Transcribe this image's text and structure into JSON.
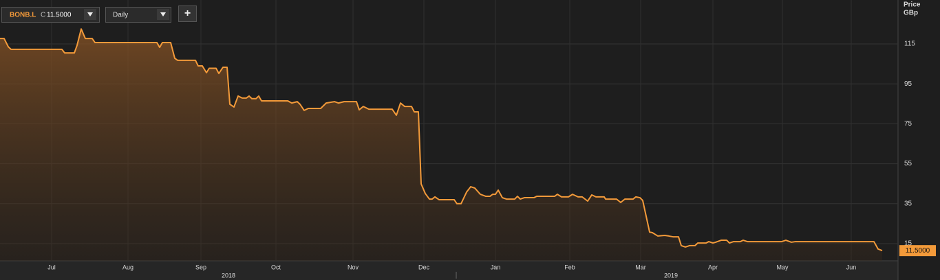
{
  "toolbar": {
    "symbol": "BONB.L",
    "close_marker": "C",
    "close_value": "11.5000",
    "interval": "Daily",
    "add_button": "+"
  },
  "chart_data": {
    "type": "line",
    "axis_title": "Price",
    "axis_unit": "GBp",
    "series": [
      {
        "color": "#f39a3a",
        "x": [
          0,
          1.2,
          2.4,
          3.2,
          18,
          18.8,
          21.6,
          22.4,
          23.6,
          24.8,
          26.8,
          27.6,
          45.6,
          46.4,
          47.2,
          49.6,
          50.8,
          51.6,
          56.8,
          57.6,
          58.8,
          60,
          60.8,
          62.8,
          63.6,
          64.8,
          66,
          66.8,
          68,
          69.2,
          70.4,
          71.6,
          72.4,
          73.2,
          74.4,
          75.2,
          76,
          83.6,
          84.8,
          86.4,
          87.2,
          88.4,
          89.6,
          93.2,
          94.8,
          97.2,
          98.4,
          100,
          103.6,
          104.4,
          105.6,
          107.2,
          114,
          115.2,
          116.4,
          117.6,
          119.6,
          120.4,
          121.6,
          122.4,
          123.6,
          124.8,
          125.6,
          126.4,
          127.6,
          132,
          132.8,
          134,
          135.6,
          136.8,
          138,
          139.6,
          141.2,
          142.4,
          143.2,
          144,
          144.8,
          146,
          147.2,
          149.6,
          150.4,
          151.2,
          152.4,
          155.2,
          156,
          161.2,
          162,
          163.2,
          165.2,
          166.4,
          168,
          169.2,
          170.8,
          172,
          173.2,
          175.6,
          176,
          179.2,
          180.4,
          181.6,
          184,
          184.8,
          186,
          186.8,
          188.8,
          189.6,
          191.2,
          193.2,
          194.4,
          195.6,
          197.2,
          198,
          199.2,
          200.4,
          202,
          202.8,
          205.2,
          206,
          207.2,
          208,
          209.6,
          211.2,
          212,
          213.2,
          215.2,
          216,
          217.2,
          227.2,
          228.4,
          230,
          231.2,
          254,
          255.2,
          256.4
        ],
        "values": [
          117.7,
          117.7,
          113.6,
          112.3,
          112.3,
          110.5,
          110.5,
          114.3,
          122.5,
          117.7,
          117.7,
          115.7,
          115.7,
          113.3,
          115.7,
          115.7,
          107.8,
          106.8,
          106.8,
          104,
          104,
          100.6,
          102.8,
          102.8,
          100.2,
          103.3,
          103.3,
          84.8,
          83.4,
          88.9,
          87.9,
          87.9,
          88.9,
          87.6,
          87.6,
          88.9,
          86.5,
          86.5,
          85.4,
          86.1,
          84.8,
          81.7,
          82.7,
          82.7,
          85.4,
          86.1,
          85.4,
          86.1,
          86.1,
          82,
          83.7,
          82.3,
          82.3,
          79.3,
          85.4,
          83.7,
          83.7,
          81,
          81,
          44.9,
          40.1,
          37.3,
          37.3,
          38.4,
          37,
          37,
          35,
          35,
          40.8,
          43.5,
          42.8,
          39.7,
          38.7,
          38.7,
          39.7,
          39.7,
          41.8,
          38,
          37.3,
          37.3,
          38.7,
          37.3,
          38,
          38,
          38.7,
          38.7,
          39.7,
          38.4,
          38.4,
          39.7,
          38.4,
          38.4,
          36.3,
          39.4,
          38.4,
          38.4,
          37.3,
          37.3,
          35.6,
          37.3,
          37.3,
          38.4,
          38,
          36.6,
          20.8,
          20.5,
          18.8,
          19.1,
          18.8,
          18.4,
          18.4,
          14,
          13.3,
          14,
          14,
          15.3,
          15.3,
          16,
          15.3,
          15.7,
          16.7,
          16.7,
          15.3,
          16,
          16,
          16.7,
          16,
          16,
          16.7,
          15.7,
          16,
          16,
          12.3,
          11.5
        ]
      }
    ],
    "price_label": {
      "value": 11.5,
      "label": "11.5000"
    },
    "xlim": [
      0,
      261
    ],
    "xticks": [
      {
        "value": 15,
        "label": "Jul"
      },
      {
        "value": 37.2,
        "label": "Aug"
      },
      {
        "value": 58.4,
        "label": "Sep"
      },
      {
        "value": 80.2,
        "label": "Oct"
      },
      {
        "value": 102.6,
        "label": "Nov"
      },
      {
        "value": 123.2,
        "label": "Dec"
      },
      {
        "value": 144,
        "label": "Jan"
      },
      {
        "value": 165.6,
        "label": "Feb"
      },
      {
        "value": 186.2,
        "label": "Mar"
      },
      {
        "value": 207.2,
        "label": "Apr"
      },
      {
        "value": 227.4,
        "label": "May"
      },
      {
        "value": 247.4,
        "label": "Jun"
      }
    ],
    "year_ticks": [
      {
        "value": 66.4,
        "label": "2018"
      },
      {
        "value": 195,
        "label": "2019"
      }
    ],
    "ylim": [
      6.4,
      137
    ],
    "yticks": [
      15,
      35,
      55,
      75,
      95,
      115
    ],
    "grid": true
  }
}
